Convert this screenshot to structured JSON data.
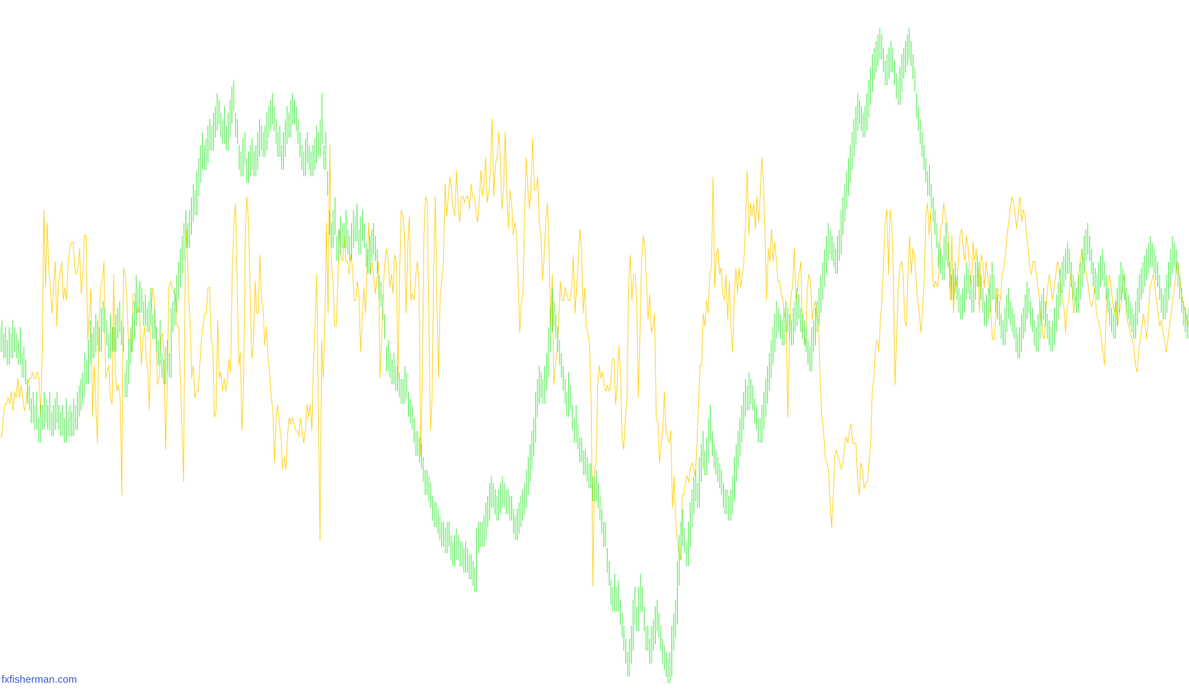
{
  "watermark": {
    "text": "fxfisherman.com"
  },
  "chart_data": {
    "type": "line",
    "title": "",
    "xlabel": "",
    "ylabel": "",
    "grid": false,
    "legend": "none",
    "ylim": [
      0,
      100
    ],
    "series": [
      {
        "color": "#ffd21a",
        "values": [
          37,
          37,
          40,
          42,
          42,
          43,
          42,
          44,
          41,
          44,
          43,
          46,
          43,
          45,
          43,
          41,
          42,
          45,
          46,
          46,
          47,
          46,
          46,
          47,
          46,
          40,
          50,
          72,
          60,
          70,
          63,
          60,
          56,
          60,
          64,
          54,
          61,
          62,
          64,
          58,
          60,
          58,
          64,
          66,
          67,
          67,
          63,
          62,
          63,
          66,
          59,
          62,
          68,
          68,
          52,
          56,
          60,
          40,
          48,
          42,
          36,
          55,
          60,
          61,
          64,
          46,
          47,
          48,
          43,
          42,
          62,
          47,
          44,
          45,
          43,
          28,
          63,
          62,
          59,
          52,
          52,
          50,
          59,
          59,
          56,
          57,
          56,
          48,
          52,
          54,
          49,
          47,
          41,
          56,
          60,
          58,
          53,
          45,
          46,
          52,
          53,
          50,
          35,
          45,
          60,
          61,
          60,
          59,
          59,
          54,
          54,
          46,
          39,
          30,
          63,
          69,
          59,
          55,
          46,
          48,
          43,
          44,
          44,
          48,
          52,
          54,
          56,
          56,
          60,
          60,
          52,
          51,
          40,
          41,
          55,
          46,
          47,
          44,
          46,
          44,
          46,
          49,
          47,
          63,
          69,
          73,
          61,
          48,
          50,
          38,
          45,
          68,
          74,
          70,
          59,
          49,
          51,
          61,
          56,
          56,
          65,
          58,
          57,
          51,
          54,
          49,
          47,
          43,
          41,
          33,
          40,
          42,
          39,
          37,
          32,
          34,
          32,
          37,
          40,
          39,
          40,
          39,
          38,
          38,
          37,
          40,
          38,
          36,
          38,
          42,
          40,
          42,
          38,
          48,
          55,
          62,
          42,
          21,
          52,
          46,
          55,
          70,
          56,
          82,
          64,
          61,
          54,
          54,
          61,
          69,
          65,
          64,
          68,
          64,
          64,
          62,
          65,
          63,
          58,
          58,
          61,
          59,
          50,
          55,
          60,
          56,
          63,
          70,
          62,
          64,
          62,
          59,
          61,
          64,
          46,
          52,
          60,
          64,
          66,
          64,
          60,
          62,
          59,
          65,
          64,
          46,
          62,
          72,
          71,
          68,
          56,
          66,
          71,
          58,
          59,
          58,
          62,
          64,
          60,
          34,
          46,
          68,
          74,
          73,
          56,
          38,
          43,
          62,
          74,
          57,
          46,
          59,
          61,
          64,
          76,
          71,
          74,
          77,
          75,
          72,
          71,
          78,
          73,
          70,
          74,
          74,
          73,
          74,
          74,
          72,
          76,
          74,
          74,
          72,
          70,
          73,
          78,
          74,
          76,
          80,
          73,
          75,
          78,
          86,
          74,
          79,
          80,
          84,
          80,
          72,
          75,
          84,
          75,
          69,
          75,
          73,
          68,
          70,
          68,
          61,
          53,
          58,
          59,
          72,
          80,
          75,
          72,
          76,
          83,
          75,
          75,
          77,
          70,
          68,
          61,
          65,
          70,
          73,
          66,
          54,
          62,
          45,
          48,
          50,
          55,
          61,
          58,
          58,
          60,
          59,
          58,
          58,
          60,
          65,
          56,
          60,
          64,
          69,
          66,
          56,
          60,
          54,
          53,
          51,
          42,
          14,
          32,
          33,
          45,
          48,
          46,
          47,
          45,
          44,
          45,
          44,
          45,
          49,
          49,
          42,
          45,
          51,
          47,
          37,
          35,
          40,
          43,
          60,
          65,
          58,
          62,
          62,
          58,
          43,
          53,
          64,
          68,
          66,
          61,
          55,
          59,
          53,
          54,
          56,
          40,
          39,
          33,
          36,
          38,
          44,
          38,
          37,
          36,
          38,
          26,
          31,
          24,
          21,
          19,
          18,
          28,
          28,
          30,
          31,
          30,
          32,
          33,
          32,
          31,
          35,
          42,
          48,
          48,
          56,
          54,
          58,
          56,
          62,
          63,
          77,
          60,
          65,
          66,
          62,
          63,
          59,
          58,
          62,
          55,
          61,
          54,
          50,
          58,
          63,
          59,
          63,
          60,
          62,
          64,
          70,
          78,
          68,
          73,
          71,
          73,
          69,
          74,
          70,
          74,
          80,
          76,
          68,
          58,
          66,
          64,
          69,
          64,
          67,
          64,
          61,
          61,
          59,
          58,
          56,
          55,
          40,
          52,
          59,
          60,
          66,
          58,
          60,
          62,
          64,
          54,
          53,
          51,
          60,
          62,
          61,
          55,
          57,
          58,
          55,
          55,
          45,
          40,
          38,
          34,
          33,
          32,
          27,
          23,
          28,
          34,
          35,
          34,
          33,
          32,
          33,
          36,
          37,
          36,
          38,
          39,
          36,
          36,
          36,
          30,
          28,
          33,
          32,
          29,
          30,
          30,
          33,
          36,
          44,
          46,
          51,
          52,
          50,
          55,
          58,
          64,
          70,
          72,
          62,
          72,
          70,
          62,
          45,
          52,
          60,
          63,
          64,
          62,
          55,
          54,
          62,
          68,
          62,
          66,
          65,
          61,
          58,
          56,
          53,
          57,
          61,
          71,
          73,
          68,
          72,
          62,
          60,
          61,
          60,
          62,
          69,
          70,
          73,
          71,
          70,
          67,
          58,
          68,
          56,
          62,
          60,
          64,
          68,
          69,
          66,
          64,
          68,
          66,
          63,
          60,
          67,
          64,
          66,
          63,
          56,
          65,
          64,
          60,
          64,
          62,
          60,
          56,
          52,
          52,
          55,
          60,
          59,
          58,
          62,
          63,
          65,
          68,
          70,
          72,
          74,
          73,
          71,
          69,
          72,
          74,
          70,
          72,
          71,
          68,
          66,
          63,
          62,
          64,
          64,
          62,
          60,
          58,
          55,
          53,
          52,
          57,
          60,
          62,
          60,
          58,
          60,
          62,
          64,
          63,
          60,
          58,
          57,
          53,
          57,
          58,
          62,
          60,
          56,
          58,
          59,
          62,
          64,
          66,
          64,
          63,
          62,
          60,
          58,
          57,
          58,
          60,
          56,
          55,
          54,
          52,
          50,
          48,
          56,
          60,
          62,
          60,
          58,
          56,
          58,
          54,
          56,
          57,
          60,
          62,
          58,
          55,
          54,
          53,
          52,
          51,
          48,
          47,
          50,
          52,
          54,
          56,
          54,
          52,
          56,
          60,
          61,
          62,
          60,
          58,
          56,
          54,
          55,
          53,
          52,
          50,
          52,
          54,
          56,
          58,
          60,
          62,
          64,
          62,
          60,
          58,
          57,
          56,
          54,
          55
        ]
      },
      {
        "color": "#3ee83e",
        "values": [
          52,
          53,
          51,
          52,
          50,
          52,
          51,
          53,
          52,
          51,
          50,
          52,
          48,
          49,
          47,
          44,
          43,
          41,
          42,
          40,
          42,
          38,
          40,
          40,
          42,
          41,
          40,
          42,
          39,
          40,
          41,
          42,
          40,
          39,
          40,
          38,
          41,
          39,
          40,
          39,
          41,
          40,
          42,
          43,
          44,
          45,
          48,
          47,
          50,
          53,
          51,
          52,
          54,
          53,
          52,
          55,
          56,
          55,
          53,
          51,
          54,
          52,
          52,
          54,
          55,
          56,
          53,
          52,
          45,
          47,
          50,
          52,
          54,
          56,
          60,
          58,
          59,
          58,
          56,
          57,
          55,
          56,
          58,
          54,
          55,
          52,
          50,
          53,
          48,
          47,
          49,
          50,
          48,
          55,
          56,
          58,
          60,
          62,
          64,
          66,
          68,
          70,
          68,
          70,
          72,
          74,
          73,
          76,
          78,
          80,
          82,
          80,
          81,
          83,
          84,
          83,
          85,
          86,
          88,
          87,
          85,
          84,
          86,
          83,
          85,
          87,
          89,
          90,
          85,
          84,
          80,
          79,
          81,
          82,
          78,
          79,
          80,
          81,
          79,
          80,
          82,
          84,
          83,
          82,
          83,
          85,
          86,
          87,
          88,
          86,
          84,
          82,
          83,
          80,
          82,
          84,
          86,
          85,
          87,
          88,
          87,
          86,
          84,
          82,
          80,
          79,
          81,
          82,
          80,
          79,
          80,
          81,
          83,
          82,
          84,
          88,
          80,
          82,
          76,
          70,
          68,
          70,
          72,
          66,
          67,
          69,
          68,
          68,
          70,
          67,
          66,
          68,
          70,
          69,
          71,
          67,
          69,
          70,
          68,
          65,
          64,
          66,
          67,
          68,
          66,
          64,
          60,
          59,
          57,
          54,
          49,
          50,
          48,
          47,
          48,
          46,
          46,
          45,
          44,
          44,
          46,
          45,
          42,
          41,
          40,
          38,
          36,
          36,
          35,
          34,
          32,
          30,
          30,
          29,
          28,
          26,
          25,
          25,
          24,
          23,
          22,
          22,
          21,
          22,
          22,
          20,
          19,
          20,
          21,
          20,
          19,
          19,
          18,
          19,
          18,
          17,
          17,
          16,
          15,
          21,
          22,
          22,
          22,
          23,
          25,
          26,
          28,
          29,
          28,
          27,
          26,
          27,
          28,
          29,
          28,
          27,
          27,
          26,
          26,
          24,
          23,
          24,
          25,
          26,
          27,
          28,
          30,
          32,
          34,
          36,
          38,
          42,
          44,
          46,
          45,
          44,
          46,
          48,
          52,
          55,
          58,
          56,
          54,
          52,
          50,
          48,
          46,
          44,
          42,
          45,
          43,
          40,
          38,
          40,
          37,
          35,
          35,
          33,
          33,
          32,
          31,
          31,
          29,
          29,
          30,
          28,
          26,
          24,
          22,
          22,
          18,
          16,
          13,
          12,
          14,
          12,
          13,
          10,
          8,
          6,
          4,
          2,
          4,
          6,
          10,
          12,
          9,
          12,
          14,
          12,
          9,
          6,
          6,
          4,
          6,
          7,
          9,
          10,
          8,
          6,
          4,
          3,
          2,
          1,
          2,
          6,
          8,
          10,
          16,
          20,
          22,
          24,
          21,
          19,
          22,
          25,
          27,
          29,
          30,
          28,
          32,
          34,
          36,
          33,
          35,
          38,
          40,
          36,
          34,
          33,
          32,
          31,
          30,
          28,
          27,
          27,
          26,
          27,
          29,
          32,
          34,
          36,
          38,
          40,
          42,
          44,
          43,
          45,
          44,
          43,
          41,
          40,
          38,
          38,
          40,
          42,
          44,
          46,
          48,
          50,
          52,
          54,
          56,
          55,
          54,
          53,
          55,
          56,
          55,
          54,
          53,
          55,
          56,
          58,
          57,
          55,
          54,
          53,
          52,
          50,
          49,
          52,
          53,
          55,
          56,
          58,
          60,
          62,
          64,
          66,
          68,
          67,
          66,
          65,
          64,
          66,
          67,
          70,
          72,
          74,
          76,
          78,
          80,
          82,
          84,
          86,
          88,
          87,
          86,
          85,
          86,
          88,
          90,
          92,
          94,
          95,
          96,
          97,
          98,
          97,
          95,
          93,
          94,
          95,
          96,
          95,
          93,
          91,
          90,
          92,
          94,
          95,
          96,
          97,
          98,
          96,
          94,
          92,
          88,
          86,
          84,
          82,
          80,
          78,
          76,
          77,
          74,
          72,
          70,
          68,
          65,
          64,
          63,
          66,
          68,
          65,
          62,
          60,
          61,
          62,
          60,
          58,
          57,
          58,
          60,
          62,
          61,
          60,
          58,
          60,
          62,
          63,
          62,
          60,
          58,
          56,
          57,
          58,
          60,
          62,
          60,
          58,
          57,
          56,
          54,
          53,
          55,
          57,
          58,
          56,
          55,
          54,
          52,
          51,
          52,
          54,
          55,
          57,
          59,
          58,
          56,
          55,
          53,
          52,
          54,
          56,
          57,
          58,
          56,
          54,
          53,
          52,
          53,
          55,
          57,
          59,
          61,
          62,
          63,
          64,
          65,
          64,
          62,
          60,
          59,
          58,
          60,
          62,
          64,
          66,
          67,
          68,
          66,
          64,
          62,
          61,
          60,
          62,
          63,
          64,
          62,
          60,
          58,
          56,
          55,
          54,
          56,
          58,
          60,
          62,
          61,
          60,
          58,
          57,
          56,
          55,
          54,
          56,
          58,
          60,
          61,
          62,
          63,
          64,
          65,
          66,
          65,
          64,
          63,
          62,
          60,
          58,
          57,
          58,
          60,
          62,
          64,
          66,
          65,
          64,
          62,
          60,
          58,
          56,
          55,
          54,
          55
        ]
      }
    ]
  }
}
